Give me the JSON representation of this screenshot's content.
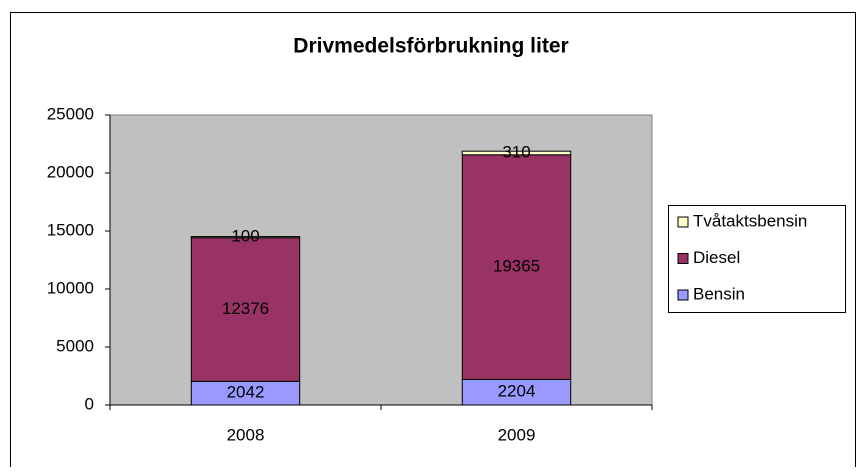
{
  "chart_data": {
    "type": "stacked_bar",
    "title": "Drivmedelsförbrukning liter",
    "categories": [
      "2008",
      "2009"
    ],
    "series": [
      {
        "name": "Bensin",
        "color": "#9999ff",
        "values": [
          2042,
          2204
        ]
      },
      {
        "name": "Diesel",
        "color": "#993366",
        "values": [
          12376,
          19365
        ]
      },
      {
        "name": "Tvåtaktsbensin",
        "color": "#ffffcc",
        "values": [
          100,
          310
        ]
      }
    ],
    "ylim": [
      0,
      25000
    ],
    "yticks": [
      0,
      5000,
      10000,
      15000,
      20000,
      25000
    ],
    "legend": "right",
    "plot_background": "#c0c0c0"
  }
}
